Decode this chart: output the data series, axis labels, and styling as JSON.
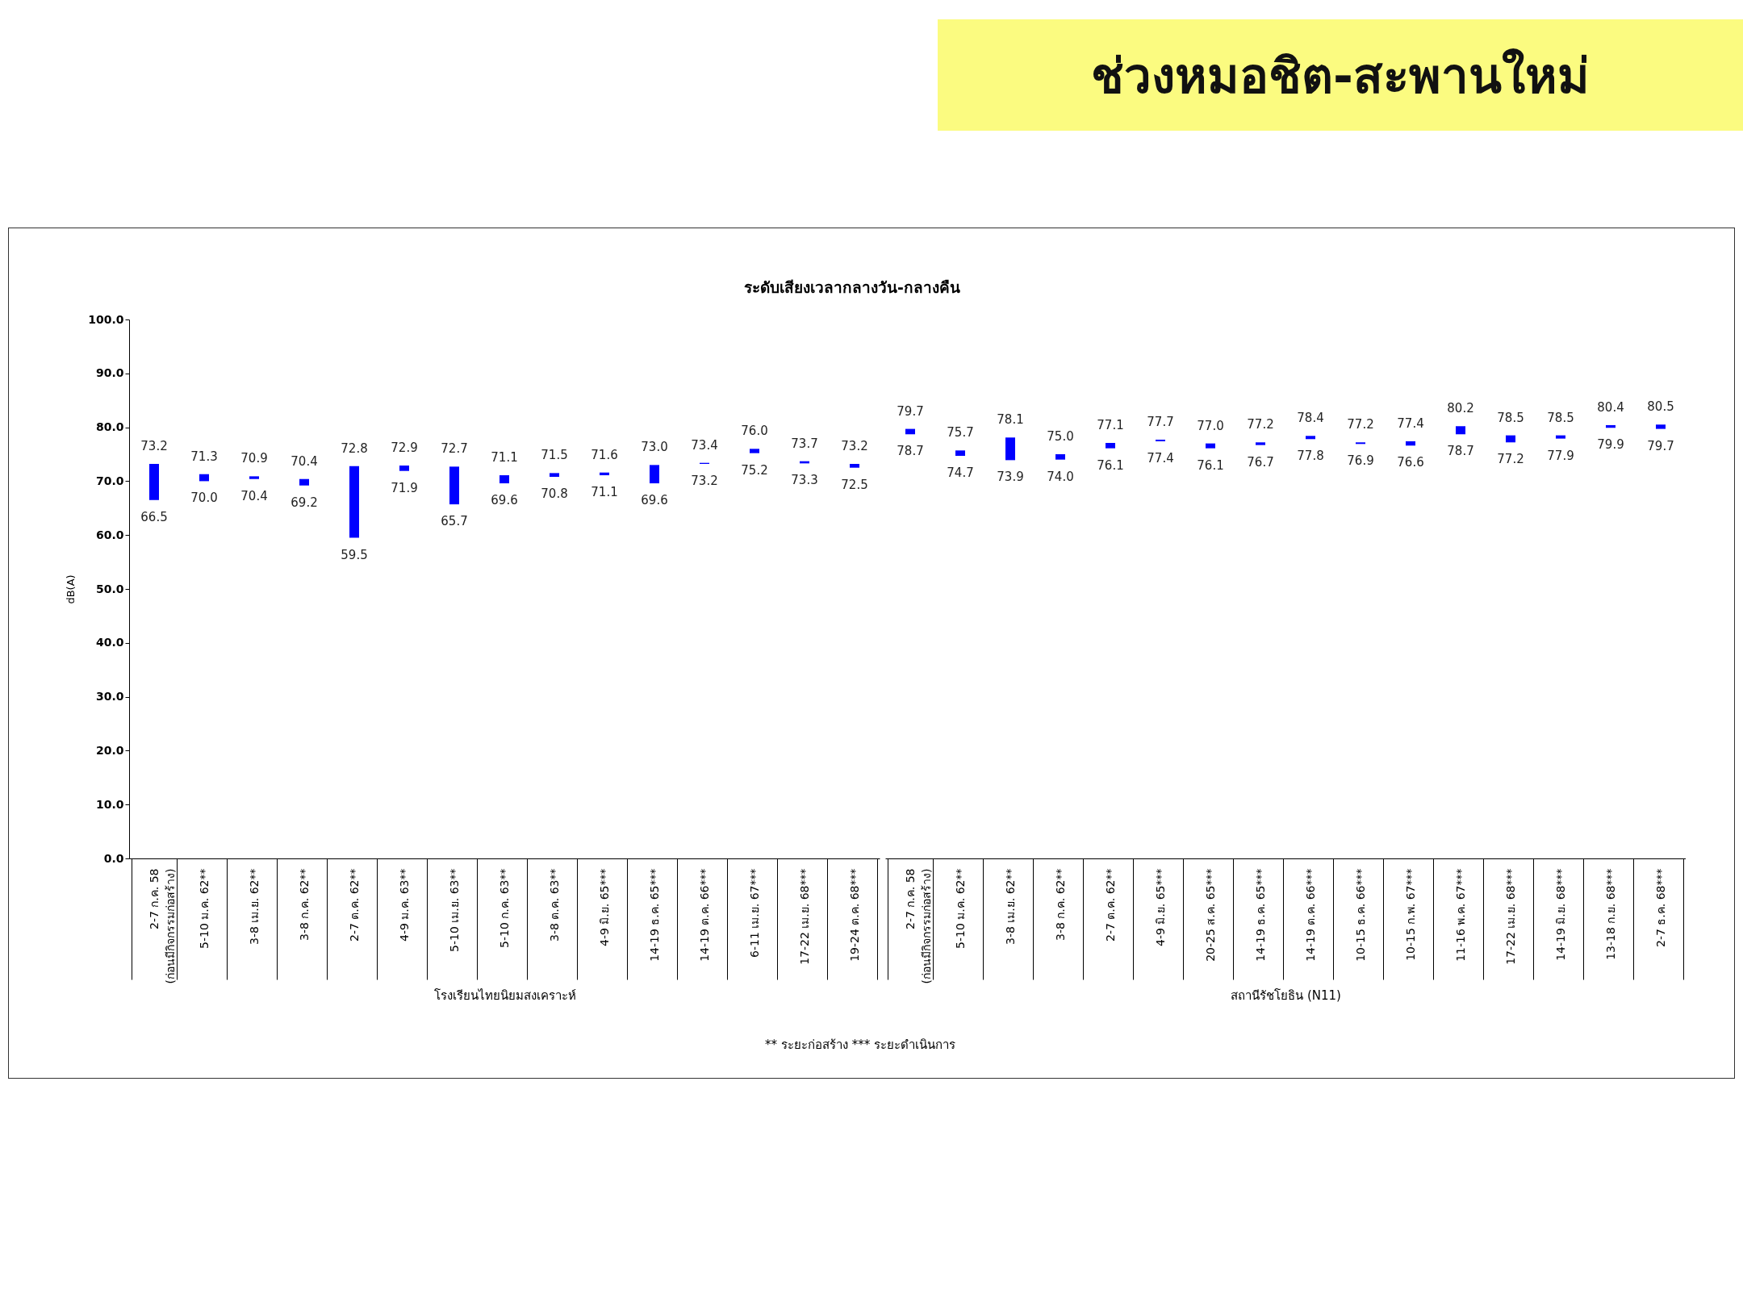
{
  "chart_data": [
    {
      "type": "other",
      "title": "ช่วงหมอชิต-สะพานใหม่",
      "subtitle": "ระดับเสียงเวลากลางวัน-กลางคืน",
      "annotations": [
        "** ระยะก่อสร้าง     *** ระยะดำเนินการ"
      ]
    },
    {
      "type": "bar",
      "ylabel": "dB(A)",
      "xlabel": "โรงเรียนไทยนิยมสงเคราะห์",
      "categories": [
        "2-7 ก.ค. 58\n(ก่อนมีกิจกรรมก่อสร้าง)",
        "5-10 ม.ค. 62**",
        "3-8 เม.ย. 62**",
        "3-8 ก.ค. 62**",
        "2-7 ต.ค. 62**",
        "4-9 ม.ค. 63**",
        "5-10 เม.ย. 63**",
        "5-10 ก.ค. 63**",
        "3-8 ต.ค. 63**",
        "4-9 มิ.ย. 65***",
        "14-19 ธ.ค. 65***",
        "14-19 ต.ค. 66***",
        "6-11 เม.ย. 67***",
        "17-22 เม.ย. 68***",
        "19-24 ต.ค. 68***"
      ],
      "base": [
        66.5,
        70.0,
        70.4,
        69.2,
        59.5,
        71.9,
        65.7,
        69.6,
        70.8,
        71.1,
        69.6,
        73.2,
        75.2,
        73.3,
        72.5
      ],
      "values": [
        6.7,
        1.3,
        0.5,
        1.2,
        13.3,
        1.0,
        7.0,
        1.5,
        0.7,
        0.5,
        3.4,
        0.2,
        0.8,
        0.4,
        0.7
      ],
      "color": "#0000ff",
      "ylim": [
        0,
        100
      ],
      "yticks": [
        {
          "value": 0,
          "label": "0.0"
        },
        {
          "value": 10,
          "label": "10.0"
        },
        {
          "value": 20,
          "label": "20.0"
        },
        {
          "value": 30,
          "label": "30.0"
        },
        {
          "value": 40,
          "label": "40.0"
        },
        {
          "value": 50,
          "label": "50.0"
        },
        {
          "value": 60,
          "label": "60.0"
        },
        {
          "value": 70,
          "label": "70.0"
        },
        {
          "value": 80,
          "label": "80.0"
        },
        {
          "value": 90,
          "label": "90.0"
        },
        {
          "value": 100,
          "label": "100.0"
        }
      ],
      "annotations": [
        {
          "text": "73.2",
          "x": "2-7 ก.ค. 58\n(ก่อนมีกิจกรรมก่อสร้าง)",
          "y": 73.2
        },
        {
          "text": "66.5",
          "x": "2-7 ก.ค. 58\n(ก่อนมีกิจกรรมก่อสร้าง)",
          "y": 66.5
        },
        {
          "text": "71.3",
          "x": "5-10 ม.ค. 62**",
          "y": 71.3
        },
        {
          "text": "70.0",
          "x": "5-10 ม.ค. 62**",
          "y": 70.0
        },
        {
          "text": "70.9",
          "x": "3-8 เม.ย. 62**",
          "y": 70.9
        },
        {
          "text": "70.4",
          "x": "3-8 เม.ย. 62**",
          "y": 70.4
        },
        {
          "text": "70.4",
          "x": "3-8 ก.ค. 62**",
          "y": 70.4
        },
        {
          "text": "69.2",
          "x": "3-8 ก.ค. 62**",
          "y": 69.2
        },
        {
          "text": "72.8",
          "x": "2-7 ต.ค. 62**",
          "y": 72.8
        },
        {
          "text": "59.5",
          "x": "2-7 ต.ค. 62**",
          "y": 59.5
        },
        {
          "text": "72.9",
          "x": "4-9 ม.ค. 63**",
          "y": 72.9
        },
        {
          "text": "71.9",
          "x": "4-9 ม.ค. 63**",
          "y": 71.9
        },
        {
          "text": "72.7",
          "x": "5-10 เม.ย. 63**",
          "y": 72.7
        },
        {
          "text": "65.7",
          "x": "5-10 เม.ย. 63**",
          "y": 65.7
        },
        {
          "text": "71.1",
          "x": "5-10 ก.ค. 63**",
          "y": 71.1
        },
        {
          "text": "69.6",
          "x": "5-10 ก.ค. 63**",
          "y": 69.6
        },
        {
          "text": "71.5",
          "x": "3-8 ต.ค. 63**",
          "y": 71.5
        },
        {
          "text": "70.8",
          "x": "3-8 ต.ค. 63**",
          "y": 70.8
        },
        {
          "text": "71.6",
          "x": "4-9 มิ.ย. 65***",
          "y": 71.6
        },
        {
          "text": "71.1",
          "x": "4-9 มิ.ย. 65***",
          "y": 71.1
        },
        {
          "text": "73.0",
          "x": "14-19 ธ.ค. 65***",
          "y": 73.0
        },
        {
          "text": "69.6",
          "x": "14-19 ธ.ค. 65***",
          "y": 69.6
        },
        {
          "text": "73.4",
          "x": "14-19 ต.ค. 66***",
          "y": 73.4
        },
        {
          "text": "73.2",
          "x": "14-19 ต.ค. 66***",
          "y": 73.2
        },
        {
          "text": "76.0",
          "x": "6-11 เม.ย. 67***",
          "y": 76.0
        },
        {
          "text": "75.2",
          "x": "6-11 เม.ย. 67***",
          "y": 75.2
        },
        {
          "text": "73.7",
          "x": "17-22 เม.ย. 68***",
          "y": 73.7
        },
        {
          "text": "73.3",
          "x": "17-22 เม.ย. 68***",
          "y": 73.3
        },
        {
          "text": "73.2",
          "x": "19-24 ต.ค. 68***",
          "y": 73.2
        },
        {
          "text": "72.5",
          "x": "19-24 ต.ค. 68***",
          "y": 72.5
        }
      ]
    },
    {
      "type": "bar",
      "xlabel": "สถานีรัชโยธิน (N11)",
      "tick_labels": "x",
      "categories": [
        "2-7 ก.ค. 58\n(ก่อนมีกิจกรรมก่อสร้าง)",
        "5-10 ม.ค. 62**",
        "3-8 เม.ย. 62**",
        "3-8 ก.ค. 62**",
        "2-7 ต.ค. 62**",
        "4-9 มิ.ย. 65***",
        "20-25 ส.ค. 65***",
        "14-19 ธ.ค. 65***",
        "14-19 ต.ค. 66***",
        "10-15 ธ.ค. 66***",
        "10-15 ก.พ. 67***",
        "11-16 พ.ค. 67***",
        "17-22 เม.ย. 68***",
        "14-19 มิ.ย. 68***",
        "13-18 ก.ย. 68***",
        "2-7 ธ.ค. 68***"
      ],
      "base": [
        78.7,
        74.7,
        73.9,
        74.0,
        76.1,
        77.4,
        76.1,
        76.7,
        77.8,
        76.9,
        76.6,
        78.7,
        77.2,
        77.9,
        79.9,
        79.7
      ],
      "values": [
        1.0,
        1.0,
        4.2,
        1.0,
        1.0,
        0.3,
        0.9,
        0.5,
        0.6,
        0.3,
        0.8,
        1.5,
        1.3,
        0.6,
        0.5,
        0.8
      ],
      "color": "#0000ff",
      "ylim": [
        0,
        100
      ],
      "annotations": [
        {
          "text": "79.7",
          "x": "2-7 ก.ค. 58\n(ก่อนมีกิจกรรมก่อสร้าง)",
          "y": 79.7
        },
        {
          "text": "78.7",
          "x": "2-7 ก.ค. 58\n(ก่อนมีกิจกรรมก่อสร้าง)",
          "y": 78.7
        },
        {
          "text": "75.7",
          "x": "5-10 ม.ค. 62**",
          "y": 75.7
        },
        {
          "text": "74.7",
          "x": "5-10 ม.ค. 62**",
          "y": 74.7
        },
        {
          "text": "78.1",
          "x": "3-8 เม.ย. 62**",
          "y": 78.1
        },
        {
          "text": "73.9",
          "x": "3-8 เม.ย. 62**",
          "y": 73.9
        },
        {
          "text": "75.0",
          "x": "3-8 ก.ค. 62**",
          "y": 75.0
        },
        {
          "text": "74.0",
          "x": "3-8 ก.ค. 62**",
          "y": 74.0
        },
        {
          "text": "77.1",
          "x": "2-7 ต.ค. 62**",
          "y": 77.1
        },
        {
          "text": "76.1",
          "x": "2-7 ต.ค. 62**",
          "y": 76.1
        },
        {
          "text": "77.7",
          "x": "4-9 มิ.ย. 65***",
          "y": 77.7
        },
        {
          "text": "77.4",
          "x": "4-9 มิ.ย. 65***",
          "y": 77.4
        },
        {
          "text": "77.0",
          "x": "20-25 ส.ค. 65***",
          "y": 77.0
        },
        {
          "text": "76.1",
          "x": "20-25 ส.ค. 65***",
          "y": 76.1
        },
        {
          "text": "77.2",
          "x": "14-19 ธ.ค. 65***",
          "y": 77.2
        },
        {
          "text": "76.7",
          "x": "14-19 ธ.ค. 65***",
          "y": 76.7
        },
        {
          "text": "78.4",
          "x": "14-19 ต.ค. 66***",
          "y": 78.4
        },
        {
          "text": "77.8",
          "x": "14-19 ต.ค. 66***",
          "y": 77.8
        },
        {
          "text": "77.2",
          "x": "10-15 ธ.ค. 66***",
          "y": 77.2
        },
        {
          "text": "76.9",
          "x": "10-15 ธ.ค. 66***",
          "y": 76.9
        },
        {
          "text": "77.4",
          "x": "10-15 ก.พ. 67***",
          "y": 77.4
        },
        {
          "text": "76.6",
          "x": "10-15 ก.พ. 67***",
          "y": 76.6
        },
        {
          "text": "80.2",
          "x": "11-16 พ.ค. 67***",
          "y": 80.2
        },
        {
          "text": "78.7",
          "x": "11-16 พ.ค. 67***",
          "y": 78.7
        },
        {
          "text": "78.5",
          "x": "17-22 เม.ย. 68***",
          "y": 78.5
        },
        {
          "text": "77.2",
          "x": "17-22 เม.ย. 68***",
          "y": 77.2
        },
        {
          "text": "78.5",
          "x": "14-19 มิ.ย. 68***",
          "y": 78.5
        },
        {
          "text": "77.9",
          "x": "14-19 มิ.ย. 68***",
          "y": 77.9
        },
        {
          "text": "80.4",
          "x": "13-18 ก.ย. 68***",
          "y": 80.4
        },
        {
          "text": "79.9",
          "x": "13-18 ก.ย. 68***",
          "y": 79.9
        },
        {
          "text": "80.5",
          "x": "2-7 ธ.ค. 68***",
          "y": 80.5
        },
        {
          "text": "79.7",
          "x": "2-7 ธ.ค. 68***",
          "y": 79.7
        }
      ]
    }
  ]
}
